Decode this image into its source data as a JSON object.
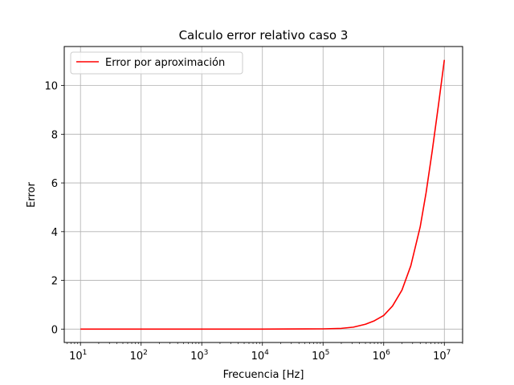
{
  "chart_data": {
    "type": "line",
    "title": "Calculo error relativo caso 3",
    "xlabel": "Frecuencia [Hz]",
    "ylabel": "Error",
    "xscale": "log",
    "xlim": [
      5.4,
      20000000
    ],
    "ylim": [
      -0.55,
      11.6
    ],
    "grid": true,
    "legend_position": "top-left",
    "x_ticks": [
      {
        "value": 10,
        "mantissa": "10",
        "exponent": "1"
      },
      {
        "value": 100,
        "mantissa": "10",
        "exponent": "2"
      },
      {
        "value": 1000,
        "mantissa": "10",
        "exponent": "3"
      },
      {
        "value": 10000,
        "mantissa": "10",
        "exponent": "4"
      },
      {
        "value": 100000,
        "mantissa": "10",
        "exponent": "5"
      },
      {
        "value": 1000000,
        "mantissa": "10",
        "exponent": "6"
      },
      {
        "value": 10000000,
        "mantissa": "10",
        "exponent": "7"
      }
    ],
    "y_ticks": [
      {
        "value": 0,
        "label": "0"
      },
      {
        "value": 2,
        "label": "2"
      },
      {
        "value": 4,
        "label": "4"
      },
      {
        "value": 6,
        "label": "6"
      },
      {
        "value": 8,
        "label": "8"
      },
      {
        "value": 10,
        "label": "10"
      }
    ],
    "series": [
      {
        "name": "Error por aproximación",
        "color": "#ff0000",
        "x": [
          10,
          100,
          1000,
          10000,
          100000,
          200000,
          316000,
          500000,
          700000,
          1000000,
          1400000,
          2000000,
          2800000,
          4000000,
          5000000,
          6300000,
          8000000,
          10000000
        ],
        "y": [
          0,
          0,
          0,
          0,
          0.01,
          0.03,
          0.08,
          0.2,
          0.34,
          0.56,
          0.95,
          1.6,
          2.6,
          4.2,
          5.6,
          7.3,
          9.2,
          11.05
        ]
      }
    ]
  }
}
